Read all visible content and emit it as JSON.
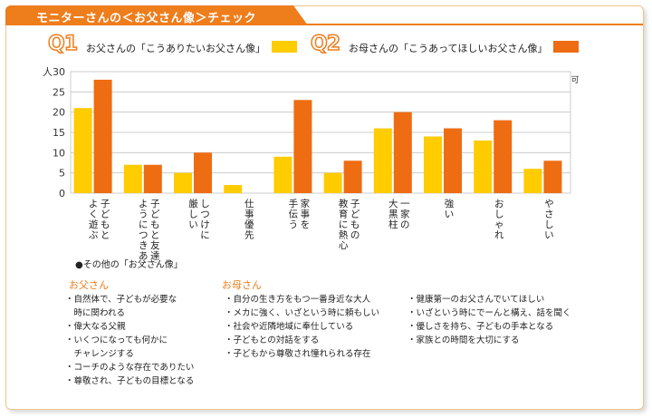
{
  "header": {
    "title": "モニターさんの＜お父さん像＞チェック"
  },
  "questions": [
    {
      "label": "Q1",
      "text": "お父さんの「こうありたいお父さん像」",
      "color": "#ffcc00"
    },
    {
      "label": "Q2",
      "text": "お母さんの「こうあってほしいお父さん像」",
      "color": "#ee6c12"
    }
  ],
  "chart_data": {
    "type": "bar",
    "ylabel": "人",
    "ylim": [
      0,
      30
    ],
    "yticks": [
      0,
      5,
      10,
      15,
      20,
      25,
      30
    ],
    "note": "※複数回答可",
    "grid": true,
    "categories": [
      [
        "子どもと",
        "よく遊ぶ"
      ],
      [
        "子どもと友達の",
        "ようにつきあう"
      ],
      [
        "しつけに",
        "厳しい"
      ],
      [
        "仕事優先"
      ],
      [
        "家事を",
        "手伝う"
      ],
      [
        "子どもの",
        "教育に熱心"
      ],
      [
        "一家の",
        "大黒柱"
      ],
      [
        "強い"
      ],
      [
        "おしゃれ"
      ],
      [
        "やさしい"
      ]
    ],
    "series": [
      {
        "name": "Q1",
        "color": "#ffcc00",
        "values": [
          21,
          7,
          5,
          2,
          9,
          5,
          16,
          14,
          13,
          6
        ]
      },
      {
        "name": "Q2",
        "color": "#ee6c12",
        "values": [
          28,
          7,
          10,
          0,
          23,
          8,
          20,
          16,
          18,
          8
        ]
      }
    ]
  },
  "others": {
    "title": "●その他の「お父さん像」",
    "father": {
      "heading": "お父さん",
      "items": [
        "・自然体で、子どもが必要な\n　時に関われる",
        "・偉大なる父親",
        "・いくつになっても何かに\n　チャレンジする",
        "・コーチのような存在でありたい",
        "・尊敬され、子どもの目標となる"
      ]
    },
    "mother": {
      "heading": "お母さん",
      "items_left": [
        "・自分の生き方をもつ一番身近な大人",
        "・メカに強く、いざという時に頼もしい",
        "・社会や近隣地域に奉仕している",
        "・子どもとの対話をする",
        "・子どもから尊敬され憧れられる存在"
      ],
      "items_right": [
        "・健康第一のお父さんでいてほしい",
        "・いざという時にでーんと構え、話を聞く",
        "・優しさを持ち、子どもの手本となる",
        "・家族との時間を大切にする"
      ]
    }
  }
}
